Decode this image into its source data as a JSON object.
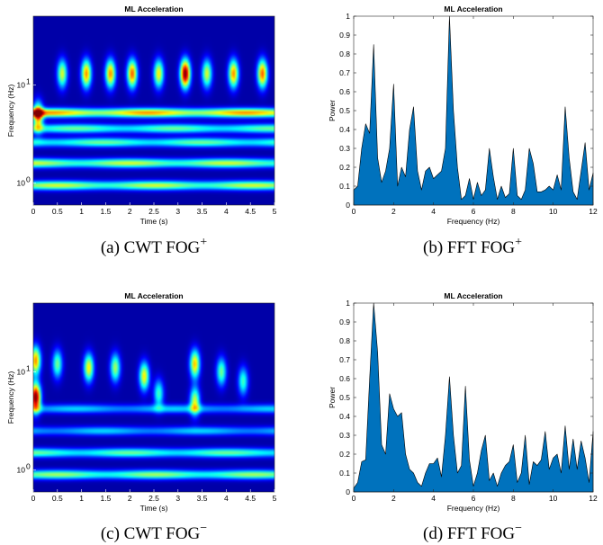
{
  "chart_data": [
    {
      "id": "a",
      "type": "heatmap",
      "title": "ML Acceleration",
      "xlabel": "Time (s)",
      "ylabel": "Frequency (Hz)",
      "xlim": [
        0,
        5
      ],
      "ylim": [
        0.6,
        50
      ],
      "y_scale": "log",
      "x_ticks": [
        "0",
        "0.5",
        "1",
        "1.5",
        "2",
        "2.5",
        "3",
        "3.5",
        "4",
        "4.5",
        "5"
      ],
      "y_ticks": [
        {
          "base": "10",
          "exp": "0",
          "value": 1
        },
        {
          "base": "10",
          "exp": "1",
          "value": 10
        }
      ],
      "colormap": "jet",
      "bands": [
        {
          "freq": 0.95,
          "amp": 0.55
        },
        {
          "freq": 1.6,
          "amp": 0.55
        },
        {
          "freq": 2.6,
          "amp": 0.45
        },
        {
          "freq": 3.6,
          "amp": 0.45
        },
        {
          "freq": 5.2,
          "amp": 0.7
        }
      ],
      "blobs": [
        {
          "t": 0.1,
          "freq": 4.8,
          "amp": 0.7
        },
        {
          "t": 0.6,
          "freq": 13,
          "amp": 0.55
        },
        {
          "t": 1.1,
          "freq": 13,
          "amp": 0.7
        },
        {
          "t": 1.6,
          "freq": 13,
          "amp": 0.7
        },
        {
          "t": 2.05,
          "freq": 13,
          "amp": 0.75
        },
        {
          "t": 2.6,
          "freq": 13,
          "amp": 0.6
        },
        {
          "t": 3.15,
          "freq": 13,
          "amp": 1.0
        },
        {
          "t": 3.6,
          "freq": 13,
          "amp": 0.55
        },
        {
          "t": 4.15,
          "freq": 13,
          "amp": 0.7
        },
        {
          "t": 4.75,
          "freq": 13,
          "amp": 0.75
        }
      ]
    },
    {
      "id": "b",
      "type": "area",
      "title": "ML Acceleration",
      "xlabel": "Frequency (Hz)",
      "ylabel": "Power",
      "xlim": [
        0,
        12
      ],
      "ylim": [
        0,
        1
      ],
      "x_ticks": [
        "0",
        "2",
        "4",
        "6",
        "8",
        "10",
        "12"
      ],
      "y_ticks": [
        "0",
        "0.1",
        "0.2",
        "0.3",
        "0.4",
        "0.5",
        "0.6",
        "0.7",
        "0.8",
        "0.9",
        "1"
      ],
      "fill_color": "#0072BD",
      "x": [
        0,
        0.2,
        0.4,
        0.6,
        0.8,
        1.0,
        1.2,
        1.4,
        1.6,
        1.8,
        2.0,
        2.2,
        2.4,
        2.6,
        2.8,
        3.0,
        3.2,
        3.4,
        3.6,
        3.8,
        4.0,
        4.2,
        4.4,
        4.6,
        4.8,
        5.0,
        5.2,
        5.4,
        5.6,
        5.8,
        6.0,
        6.2,
        6.4,
        6.6,
        6.8,
        7.0,
        7.2,
        7.4,
        7.6,
        7.8,
        8.0,
        8.2,
        8.4,
        8.6,
        8.8,
        9.0,
        9.2,
        9.4,
        9.6,
        9.8,
        10.0,
        10.2,
        10.4,
        10.6,
        10.8,
        11.0,
        11.2,
        11.4,
        11.6,
        11.8,
        12.0
      ],
      "values": [
        0.08,
        0.1,
        0.3,
        0.43,
        0.38,
        0.85,
        0.25,
        0.12,
        0.18,
        0.3,
        0.64,
        0.1,
        0.2,
        0.15,
        0.4,
        0.52,
        0.18,
        0.08,
        0.18,
        0.2,
        0.14,
        0.16,
        0.18,
        0.3,
        1.0,
        0.5,
        0.2,
        0.03,
        0.05,
        0.14,
        0.03,
        0.12,
        0.05,
        0.08,
        0.3,
        0.15,
        0.03,
        0.1,
        0.04,
        0.06,
        0.3,
        0.05,
        0.03,
        0.08,
        0.3,
        0.22,
        0.07,
        0.07,
        0.08,
        0.1,
        0.08,
        0.16,
        0.08,
        0.52,
        0.25,
        0.07,
        0.03,
        0.18,
        0.33,
        0.08,
        0.17
      ]
    },
    {
      "id": "c",
      "type": "heatmap",
      "title": "ML Acceleration",
      "xlabel": "Time (s)",
      "ylabel": "Frequency (Hz)",
      "xlim": [
        0,
        5
      ],
      "ylim": [
        0.6,
        50
      ],
      "y_scale": "log",
      "x_ticks": [
        "0",
        "0.5",
        "1",
        "1.5",
        "2",
        "2.5",
        "3",
        "3.5",
        "4",
        "4.5",
        "5"
      ],
      "y_ticks": [
        {
          "base": "10",
          "exp": "0",
          "value": 1
        },
        {
          "base": "10",
          "exp": "1",
          "value": 10
        }
      ],
      "colormap": "jet",
      "bands": [
        {
          "freq": 0.9,
          "amp": 0.5
        },
        {
          "freq": 1.5,
          "amp": 0.45
        },
        {
          "freq": 2.5,
          "amp": 0.3
        },
        {
          "freq": 4.2,
          "amp": 0.3
        }
      ],
      "blobs": [
        {
          "t": 0.05,
          "freq": 5.5,
          "amp": 1.0
        },
        {
          "t": 0.05,
          "freq": 13,
          "amp": 0.7
        },
        {
          "t": 0.5,
          "freq": 12,
          "amp": 0.45
        },
        {
          "t": 1.15,
          "freq": 11,
          "amp": 0.6
        },
        {
          "t": 1.7,
          "freq": 11,
          "amp": 0.5
        },
        {
          "t": 2.3,
          "freq": 9,
          "amp": 0.6
        },
        {
          "t": 2.6,
          "freq": 6,
          "amp": 0.4
        },
        {
          "t": 3.35,
          "freq": 12,
          "amp": 0.65
        },
        {
          "t": 3.35,
          "freq": 5,
          "amp": 0.55
        },
        {
          "t": 3.9,
          "freq": 10,
          "amp": 0.45
        },
        {
          "t": 4.35,
          "freq": 8,
          "amp": 0.4
        }
      ]
    },
    {
      "id": "d",
      "type": "area",
      "title": "ML Acceleration",
      "xlabel": "Frequency (Hz)",
      "ylabel": "Power",
      "xlim": [
        0,
        12
      ],
      "ylim": [
        0,
        1
      ],
      "x_ticks": [
        "0",
        "2",
        "4",
        "6",
        "8",
        "10",
        "12"
      ],
      "y_ticks": [
        "0",
        "0.1",
        "0.2",
        "0.3",
        "0.4",
        "0.5",
        "0.6",
        "0.7",
        "0.8",
        "0.9",
        "1"
      ],
      "fill_color": "#0072BD",
      "x": [
        0,
        0.2,
        0.4,
        0.6,
        0.8,
        1.0,
        1.2,
        1.4,
        1.6,
        1.8,
        2.0,
        2.2,
        2.4,
        2.6,
        2.8,
        3.0,
        3.2,
        3.4,
        3.6,
        3.8,
        4.0,
        4.2,
        4.4,
        4.6,
        4.8,
        5.0,
        5.2,
        5.4,
        5.6,
        5.8,
        6.0,
        6.2,
        6.4,
        6.6,
        6.8,
        7.0,
        7.2,
        7.4,
        7.6,
        7.8,
        8.0,
        8.2,
        8.4,
        8.6,
        8.8,
        9.0,
        9.2,
        9.4,
        9.6,
        9.8,
        10.0,
        10.2,
        10.4,
        10.6,
        10.8,
        11.0,
        11.2,
        11.4,
        11.6,
        11.8,
        12.0
      ],
      "values": [
        0.02,
        0.05,
        0.16,
        0.17,
        0.6,
        1.0,
        0.74,
        0.25,
        0.2,
        0.52,
        0.44,
        0.4,
        0.42,
        0.2,
        0.12,
        0.1,
        0.05,
        0.03,
        0.1,
        0.15,
        0.15,
        0.18,
        0.08,
        0.3,
        0.61,
        0.3,
        0.1,
        0.14,
        0.56,
        0.17,
        0.03,
        0.1,
        0.22,
        0.3,
        0.06,
        0.1,
        0.03,
        0.1,
        0.14,
        0.16,
        0.25,
        0.05,
        0.1,
        0.3,
        0.04,
        0.16,
        0.14,
        0.17,
        0.32,
        0.12,
        0.18,
        0.2,
        0.1,
        0.35,
        0.12,
        0.28,
        0.12,
        0.27,
        0.18,
        0.05,
        0.32
      ]
    }
  ],
  "captions": [
    {
      "prefix": "(a) CWT FOG",
      "sup": "+"
    },
    {
      "prefix": "(b) FFT FOG",
      "sup": "+"
    },
    {
      "prefix": "(c) CWT FOG",
      "sup": "−"
    },
    {
      "prefix": "(d) FFT FOG",
      "sup": "−"
    }
  ]
}
